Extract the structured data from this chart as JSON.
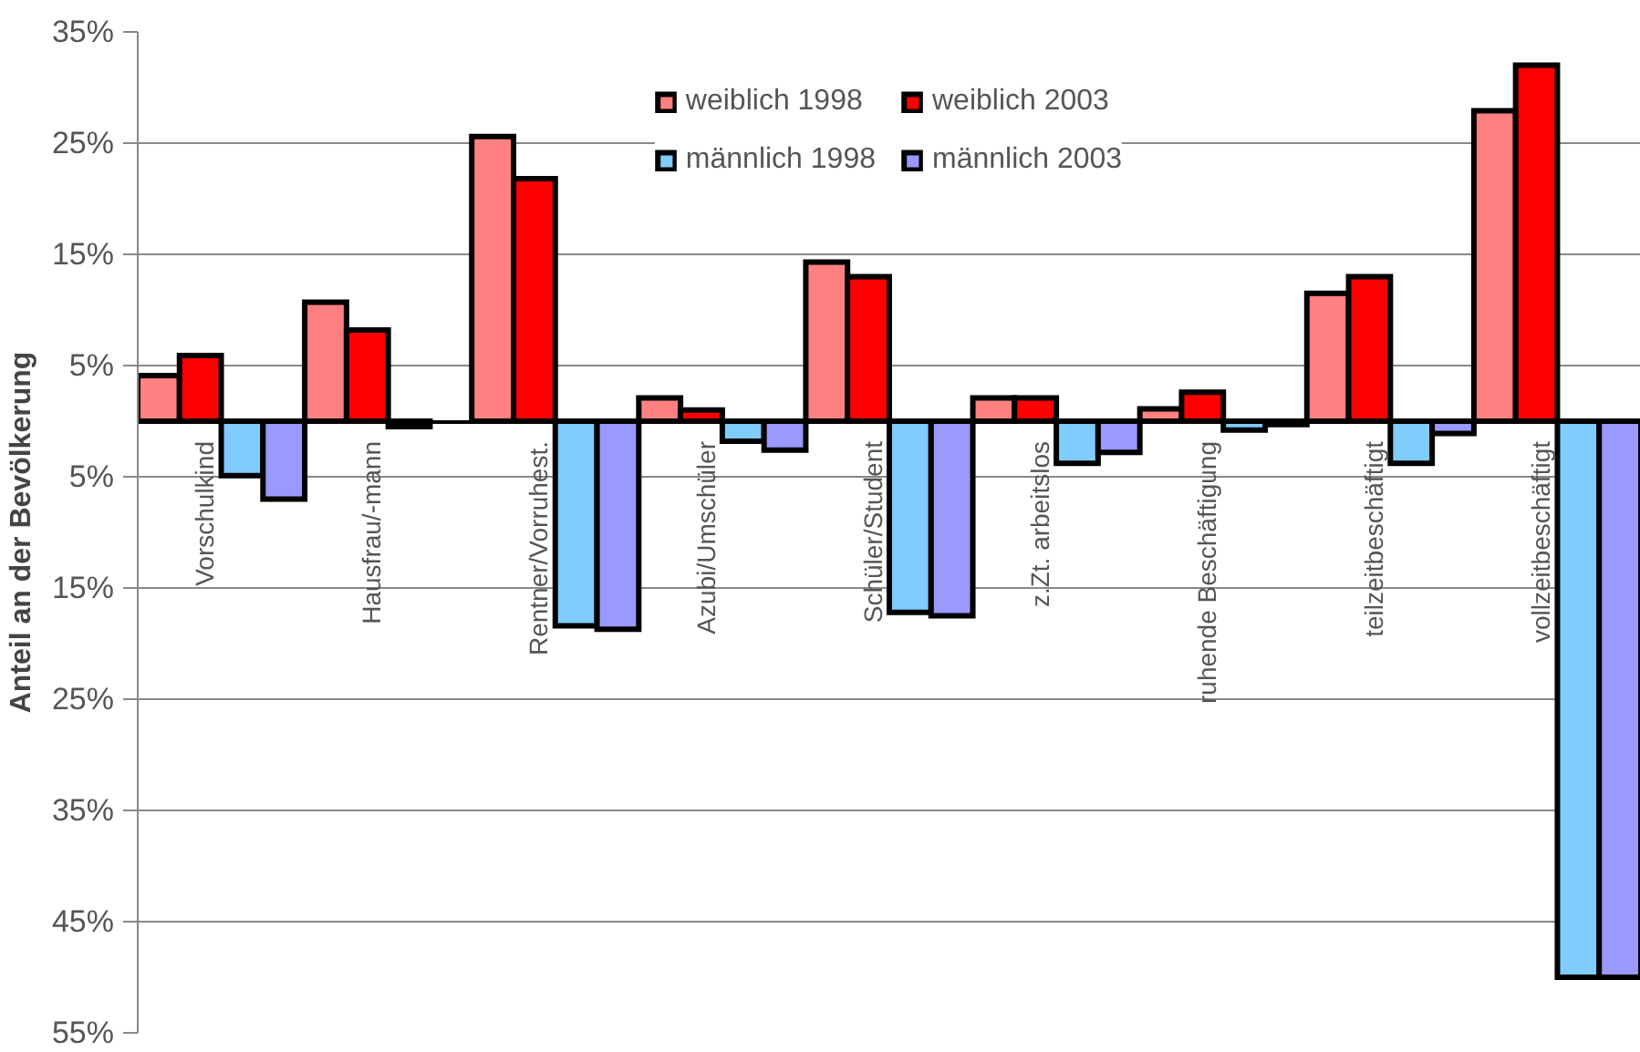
{
  "chart_data": {
    "type": "bar",
    "ylabel": "Anteil an der Bevölkerung",
    "categories": [
      "Vorschulkind",
      "Hausfrau/-mann",
      "Rentner/Vorruhest.",
      "Azubi/Umschüler",
      "Schüler/Student",
      "z.Zt. arbeitslos",
      "ruhende Beschäftigung",
      "teilzeitbeschäftigt",
      "vollzeitbeschäftigt"
    ],
    "series": [
      {
        "name": "weiblich 1998",
        "color": "#ff8080",
        "values": [
          4.1,
          10.7,
          25.6,
          2.1,
          14.3,
          2.1,
          1.1,
          11.5,
          27.9
        ]
      },
      {
        "name": "weiblich 2003",
        "color": "#ff0000",
        "values": [
          5.9,
          8.2,
          21.8,
          1.0,
          13.0,
          2.1,
          2.6,
          13.0,
          32.0
        ]
      },
      {
        "name": "männlich 1998",
        "color": "#80ccff",
        "values": [
          -4.9,
          -0.5,
          -18.4,
          -1.8,
          -17.2,
          -3.8,
          -0.8,
          -3.8,
          -50.0
        ]
      },
      {
        "name": "männlich 2003",
        "color": "#9999ff",
        "values": [
          -7.0,
          null,
          -18.7,
          -2.6,
          -17.5,
          -2.8,
          -0.3,
          -1.1,
          -50.0
        ]
      }
    ],
    "ylim": [
      -55,
      35
    ],
    "yticks": [
      {
        "value": 35,
        "label": "35%"
      },
      {
        "value": 25,
        "label": "25%"
      },
      {
        "value": 15,
        "label": "15%"
      },
      {
        "value": 5,
        "label": "5%"
      },
      {
        "value": -5,
        "label": "5%"
      },
      {
        "value": -15,
        "label": "15%"
      },
      {
        "value": -25,
        "label": "25%"
      },
      {
        "value": -35,
        "label": "35%"
      },
      {
        "value": -45,
        "label": "45%"
      },
      {
        "value": -55,
        "label": "55%"
      }
    ],
    "grid": "y",
    "legend": "top"
  }
}
